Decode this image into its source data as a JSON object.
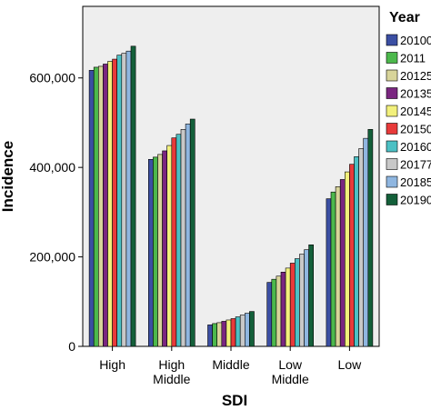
{
  "chart_data": {
    "type": "bar",
    "xlabel": "SDI",
    "ylabel": "Incidence",
    "ylim": [
      0,
      760000
    ],
    "y_ticks": [
      0,
      200000,
      400000,
      600000
    ],
    "y_tick_labels": [
      "0",
      "200,000",
      "400,000",
      "600,000"
    ],
    "grid": false,
    "legend_position": "right",
    "categories": [
      [
        "High"
      ],
      [
        "High",
        "Middle"
      ],
      [
        "Middle"
      ],
      [
        "Low",
        "Middle"
      ],
      [
        "Low"
      ]
    ],
    "category_ids": [
      "high",
      "high-middle",
      "middle",
      "low-middle",
      "low"
    ],
    "legend_title": "Year",
    "series": [
      {
        "name": "20100",
        "color": "#3b4fa3",
        "values": [
          617000,
          418000,
          48000,
          143000,
          330000
        ]
      },
      {
        "name": "2011",
        "color": "#4cb84c",
        "values": [
          624000,
          423000,
          51000,
          150000,
          345000
        ]
      },
      {
        "name": "20125",
        "color": "#d8d49a",
        "values": [
          626000,
          429000,
          53000,
          157000,
          357000
        ]
      },
      {
        "name": "20135",
        "color": "#7a2680",
        "values": [
          631000,
          437000,
          56000,
          166000,
          373000
        ]
      },
      {
        "name": "20145",
        "color": "#f2f07c",
        "values": [
          637000,
          449000,
          59000,
          175000,
          390000
        ]
      },
      {
        "name": "20150",
        "color": "#e83a3a",
        "values": [
          642000,
          466000,
          62000,
          186000,
          407000
        ]
      },
      {
        "name": "20160",
        "color": "#4cc0c4",
        "values": [
          651000,
          474000,
          66000,
          196000,
          424000
        ]
      },
      {
        "name": "20177",
        "color": "#c8c8c8",
        "values": [
          655000,
          485000,
          70000,
          206000,
          442000
        ]
      },
      {
        "name": "20185",
        "color": "#8fb6e0",
        "values": [
          660000,
          497000,
          74000,
          216000,
          465000
        ]
      },
      {
        "name": "20190",
        "color": "#14603a",
        "values": [
          671000,
          508000,
          78000,
          227000,
          485000
        ]
      }
    ]
  }
}
